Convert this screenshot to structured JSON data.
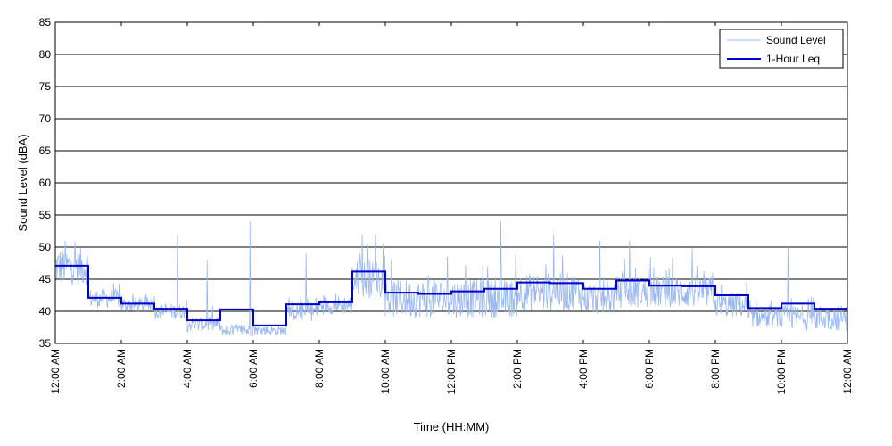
{
  "chart_data": {
    "type": "line",
    "title": "",
    "xlabel": "Time (HH:MM)",
    "ylabel": "Sound Level (dBA)",
    "ylim": [
      35,
      85
    ],
    "yticks": [
      35,
      40,
      45,
      50,
      55,
      60,
      65,
      70,
      75,
      80,
      85
    ],
    "xlim_hours": [
      0,
      24
    ],
    "xtick_hours": [
      0,
      2,
      4,
      6,
      8,
      10,
      12,
      14,
      16,
      18,
      20,
      22,
      24
    ],
    "xtick_labels": [
      "12:00 AM",
      "2:00 AM",
      "4:00 AM",
      "6:00 AM",
      "8:00 AM",
      "10:00 AM",
      "12:00 PM",
      "2:00 PM",
      "4:00 PM",
      "6:00 PM",
      "8:00 PM",
      "10:00 PM",
      "12:00 AM"
    ],
    "grid": "horizontal",
    "legend_position": "top-right",
    "series": [
      {
        "name": "Sound Level",
        "style": "thin-line",
        "color": "#9ab8f0",
        "hourly_base": [
          47,
          42,
          41,
          40,
          38,
          37,
          37,
          40,
          41,
          45,
          42,
          42,
          42,
          42,
          43,
          43,
          42,
          43,
          43,
          43,
          41,
          39,
          39,
          39
        ],
        "hourly_spread": [
          3,
          1.5,
          1.2,
          1.2,
          1.2,
          1.0,
          0.8,
          1.5,
          1.5,
          3,
          3,
          3,
          3,
          3,
          3,
          3,
          2.5,
          2.5,
          2.5,
          2.5,
          2,
          1.5,
          2,
          2
        ],
        "spikes": [
          {
            "hour": 0.3,
            "value": 51
          },
          {
            "hour": 3.7,
            "value": 52
          },
          {
            "hour": 4.6,
            "value": 48
          },
          {
            "hour": 5.9,
            "value": 54
          },
          {
            "hour": 7.6,
            "value": 49
          },
          {
            "hour": 9.3,
            "value": 52
          },
          {
            "hour": 9.7,
            "value": 52
          },
          {
            "hour": 13.5,
            "value": 54
          },
          {
            "hour": 15.1,
            "value": 52
          },
          {
            "hour": 16.5,
            "value": 51
          },
          {
            "hour": 17.4,
            "value": 51
          },
          {
            "hour": 19.3,
            "value": 50
          },
          {
            "hour": 22.2,
            "value": 50
          }
        ]
      },
      {
        "name": "1-Hour Leq",
        "style": "step",
        "color": "#0000cc",
        "hours": [
          0,
          1,
          2,
          3,
          4,
          5,
          6,
          7,
          8,
          9,
          10,
          11,
          12,
          13,
          14,
          15,
          16,
          17,
          18,
          19,
          20,
          21,
          22,
          23
        ],
        "values": [
          47.1,
          42.1,
          41.2,
          40.4,
          38.6,
          40.3,
          37.8,
          41.1,
          41.4,
          46.2,
          42.9,
          42.7,
          43.1,
          43.5,
          44.5,
          44.4,
          43.5,
          44.8,
          44.0,
          43.9,
          42.5,
          40.5,
          41.2,
          40.4
        ]
      }
    ]
  }
}
